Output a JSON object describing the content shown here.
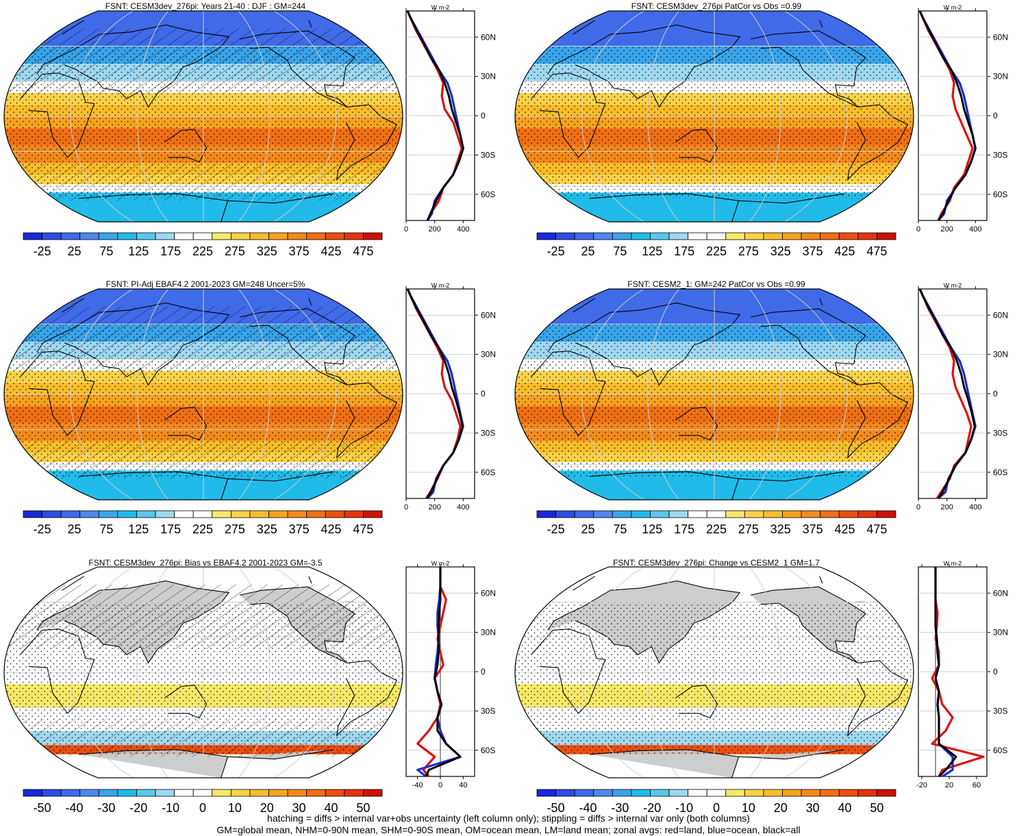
{
  "panels": [
    {
      "id": "p1",
      "title": "FSNT: CESM3dev_276pi: Years 21-40 : DJF : GM=244",
      "scale": "abs",
      "hatch": true,
      "stipple": true,
      "cbar_ticks": [
        "-25",
        "25",
        "75",
        "125",
        "175",
        "225",
        "275",
        "325",
        "375",
        "425",
        "475"
      ],
      "zonal_xticks": [
        "0",
        "200",
        "400"
      ],
      "zonal_xlim": [
        0,
        480
      ],
      "zonal_unit": "W m-2"
    },
    {
      "id": "p2",
      "title": "FSNT: CESM3dev_276pi PatCor vs Obs =0.99",
      "scale": "abs",
      "hatch": false,
      "stipple": true,
      "cbar_ticks": [
        "-25",
        "25",
        "75",
        "125",
        "175",
        "225",
        "275",
        "325",
        "375",
        "425",
        "475"
      ],
      "zonal_xticks": [
        "0",
        "200",
        "400"
      ],
      "zonal_xlim": [
        0,
        480
      ],
      "zonal_unit": "W m-2"
    },
    {
      "id": "p3",
      "title": "FSNT: PI-Adj EBAF4.2 2001-2023 GM=248 Uncer=5%",
      "scale": "abs",
      "hatch": true,
      "stipple": true,
      "cbar_ticks": [
        "-25",
        "25",
        "75",
        "125",
        "175",
        "225",
        "275",
        "325",
        "375",
        "425",
        "475"
      ],
      "zonal_xticks": [
        "0",
        "200",
        "400"
      ],
      "zonal_xlim": [
        0,
        480
      ],
      "zonal_unit": "W m-2"
    },
    {
      "id": "p4",
      "title": "FSNT: CESM2_1: GM=242 PatCor vs Obs =0.99",
      "scale": "abs",
      "hatch": false,
      "stipple": true,
      "cbar_ticks": [
        "-25",
        "25",
        "75",
        "125",
        "175",
        "225",
        "275",
        "325",
        "375",
        "425",
        "475"
      ],
      "zonal_xticks": [
        "0",
        "200",
        "400"
      ],
      "zonal_xlim": [
        0,
        480
      ],
      "zonal_unit": "W m-2"
    },
    {
      "id": "p5",
      "title": "FSNT: CESM3dev_276pi: Bias vs EBAF4.2 2001-2023 GM=-3.5",
      "scale": "diff",
      "hatch": true,
      "stipple": true,
      "cbar_ticks": [
        "-50",
        "-40",
        "-30",
        "-20",
        "-10",
        "0",
        "10",
        "20",
        "30",
        "40",
        "50"
      ],
      "zonal_xticks": [
        "-40",
        "0",
        "40"
      ],
      "zonal_xlim": [
        -60,
        60
      ],
      "zonal_unit": "W m-2"
    },
    {
      "id": "p6",
      "title": "FSNT: CESM3dev_276pi: Change vs CESM2_1 GM=1.7",
      "scale": "diff",
      "hatch": false,
      "stipple": true,
      "cbar_ticks": [
        "-50",
        "-40",
        "-30",
        "-20",
        "-10",
        "0",
        "10",
        "20",
        "30",
        "40",
        "50"
      ],
      "zonal_xticks": [
        "-20",
        "20",
        "60"
      ],
      "zonal_xlim": [
        -25,
        75
      ],
      "zonal_unit": "W m-2"
    }
  ],
  "lat_labels": [
    "60N",
    "30N",
    "0",
    "30S",
    "60S"
  ],
  "colors": {
    "abs_scale": [
      "#1a27d8",
      "#2f4de3",
      "#3f6ae8",
      "#4f88ee",
      "#38a5ea",
      "#21bbe9",
      "#58c8ec",
      "#9ed8f2",
      "#ffffff",
      "#ffffff",
      "#f9e868",
      "#fad24a",
      "#f8bd2b",
      "#f5a31f",
      "#f38a1b",
      "#ef6f14",
      "#ea5010",
      "#e3330c",
      "#cd1208"
    ],
    "diff_scale": [
      "#1a27d8",
      "#2f4de3",
      "#3f6ae8",
      "#4f88ee",
      "#38a5ea",
      "#21bbe9",
      "#58c8ec",
      "#9ed8f2",
      "#ffffff",
      "#ffffff",
      "#f9e868",
      "#fad24a",
      "#f8bd2b",
      "#f5a31f",
      "#f38a1b",
      "#ef6f14",
      "#ea5010",
      "#e3330c",
      "#cd1208"
    ],
    "land_line": "#e01010",
    "ocean_line": "#1a2bd8",
    "all_line": "#000000",
    "land_gray": "#c8c8c8"
  },
  "chart_data": [
    {
      "type": "line",
      "panel": "p1",
      "ylabel": "",
      "xlabel": "W m-2",
      "y_lat": [
        -85,
        -75,
        -65,
        -55,
        -45,
        -35,
        -25,
        -15,
        -5,
        5,
        15,
        25,
        35,
        45,
        55,
        65,
        75,
        85
      ],
      "series": [
        {
          "name": "land",
          "values": [
            150,
            170,
            230,
            260,
            330,
            360,
            390,
            360,
            330,
            270,
            250,
            260,
            220,
            170,
            120,
            70,
            30,
            10
          ]
        },
        {
          "name": "ocean",
          "values": [
            150,
            180,
            200,
            260,
            330,
            370,
            400,
            380,
            360,
            340,
            320,
            290,
            230,
            180,
            130,
            80,
            30,
            10
          ]
        },
        {
          "name": "all",
          "values": [
            150,
            170,
            210,
            260,
            330,
            370,
            400,
            380,
            350,
            320,
            300,
            270,
            230,
            170,
            125,
            75,
            30,
            10
          ]
        }
      ]
    },
    {
      "type": "line",
      "panel": "p2",
      "ylabel": "",
      "xlabel": "W m-2",
      "y_lat": [
        -85,
        -75,
        -65,
        -55,
        -45,
        -35,
        -25,
        -15,
        -5,
        5,
        15,
        25,
        35,
        45,
        55,
        65,
        75,
        85
      ],
      "series": [
        {
          "name": "land",
          "values": [
            140,
            160,
            220,
            250,
            320,
            350,
            380,
            340,
            300,
            260,
            240,
            250,
            220,
            170,
            120,
            70,
            30,
            10
          ]
        },
        {
          "name": "ocean",
          "values": [
            140,
            180,
            200,
            260,
            330,
            370,
            400,
            380,
            360,
            340,
            320,
            290,
            230,
            180,
            130,
            80,
            30,
            10
          ]
        },
        {
          "name": "all",
          "values": [
            140,
            170,
            210,
            260,
            330,
            370,
            400,
            380,
            350,
            320,
            300,
            270,
            230,
            170,
            125,
            75,
            30,
            10
          ]
        }
      ]
    },
    {
      "type": "line",
      "panel": "p3",
      "ylabel": "",
      "xlabel": "W m-2",
      "y_lat": [
        -85,
        -75,
        -65,
        -55,
        -45,
        -35,
        -25,
        -15,
        -5,
        5,
        15,
        25,
        35,
        45,
        55,
        65,
        75,
        85
      ],
      "series": [
        {
          "name": "land",
          "values": [
            140,
            170,
            220,
            260,
            330,
            360,
            380,
            350,
            320,
            270,
            250,
            260,
            220,
            170,
            120,
            70,
            30,
            10
          ]
        },
        {
          "name": "ocean",
          "values": [
            150,
            190,
            210,
            260,
            330,
            370,
            400,
            380,
            360,
            340,
            320,
            290,
            230,
            180,
            130,
            80,
            30,
            10
          ]
        },
        {
          "name": "all",
          "values": [
            145,
            175,
            215,
            260,
            330,
            370,
            395,
            375,
            350,
            320,
            300,
            270,
            230,
            170,
            125,
            75,
            30,
            10
          ]
        }
      ]
    },
    {
      "type": "line",
      "panel": "p4",
      "ylabel": "",
      "xlabel": "W m-2",
      "y_lat": [
        -85,
        -75,
        -65,
        -55,
        -45,
        -35,
        -25,
        -15,
        -5,
        5,
        15,
        25,
        35,
        45,
        55,
        65,
        75,
        85
      ],
      "series": [
        {
          "name": "land",
          "values": [
            130,
            160,
            220,
            250,
            330,
            350,
            370,
            340,
            300,
            260,
            240,
            250,
            220,
            170,
            120,
            70,
            30,
            10
          ]
        },
        {
          "name": "ocean",
          "values": [
            140,
            190,
            210,
            260,
            330,
            370,
            400,
            380,
            360,
            340,
            320,
            290,
            230,
            180,
            130,
            80,
            30,
            10
          ]
        },
        {
          "name": "all",
          "values": [
            140,
            170,
            215,
            260,
            330,
            370,
            395,
            375,
            350,
            320,
            300,
            270,
            230,
            170,
            125,
            75,
            30,
            10
          ]
        }
      ]
    },
    {
      "type": "line",
      "panel": "p5",
      "ylabel": "",
      "xlabel": "W m-2",
      "y_lat": [
        -85,
        -75,
        -65,
        -55,
        -45,
        -35,
        -25,
        -15,
        -5,
        5,
        15,
        25,
        35,
        45,
        55,
        65,
        75,
        85
      ],
      "series": [
        {
          "name": "land",
          "values": [
            -20,
            -30,
            -10,
            -40,
            -20,
            -5,
            0,
            -5,
            -10,
            5,
            0,
            -5,
            0,
            5,
            10,
            0,
            0,
            0
          ]
        },
        {
          "name": "ocean",
          "values": [
            -25,
            -40,
            35,
            10,
            0,
            -5,
            2,
            -5,
            -10,
            -8,
            -5,
            -3,
            -5,
            -5,
            -2,
            0,
            0,
            0
          ]
        },
        {
          "name": "all",
          "values": [
            -25,
            -20,
            35,
            10,
            -5,
            -5,
            2,
            -5,
            -10,
            -5,
            -3,
            -3,
            -3,
            -2,
            0,
            0,
            0,
            0
          ]
        }
      ]
    },
    {
      "type": "line",
      "panel": "p6",
      "ylabel": "",
      "xlabel": "W m-2",
      "y_lat": [
        -85,
        -75,
        -65,
        -55,
        -45,
        -35,
        -25,
        -15,
        -5,
        5,
        15,
        25,
        35,
        45,
        55,
        65,
        75,
        85
      ],
      "series": [
        {
          "name": "land",
          "values": [
            5,
            10,
            70,
            -5,
            15,
            25,
            10,
            5,
            -5,
            5,
            5,
            0,
            2,
            3,
            0,
            0,
            0,
            0
          ]
        },
        {
          "name": "ocean",
          "values": [
            10,
            25,
            25,
            5,
            5,
            5,
            3,
            5,
            0,
            5,
            3,
            2,
            0,
            0,
            0,
            0,
            0,
            0
          ]
        },
        {
          "name": "all",
          "values": [
            5,
            15,
            30,
            5,
            5,
            5,
            3,
            5,
            0,
            5,
            3,
            2,
            0,
            0,
            0,
            0,
            0,
            0
          ]
        }
      ]
    }
  ],
  "footer": {
    "line1": "hatching = diffs > internal var+obs uncertainty (left column only); stippling = diffs > internal var only (both columns)",
    "line2": "GM=global mean, NHM=0-90N mean, SHM=0-90S mean, OM=ocean mean, LM=land mean; zonal avgs: red=land, blue=ocean, black=all"
  }
}
